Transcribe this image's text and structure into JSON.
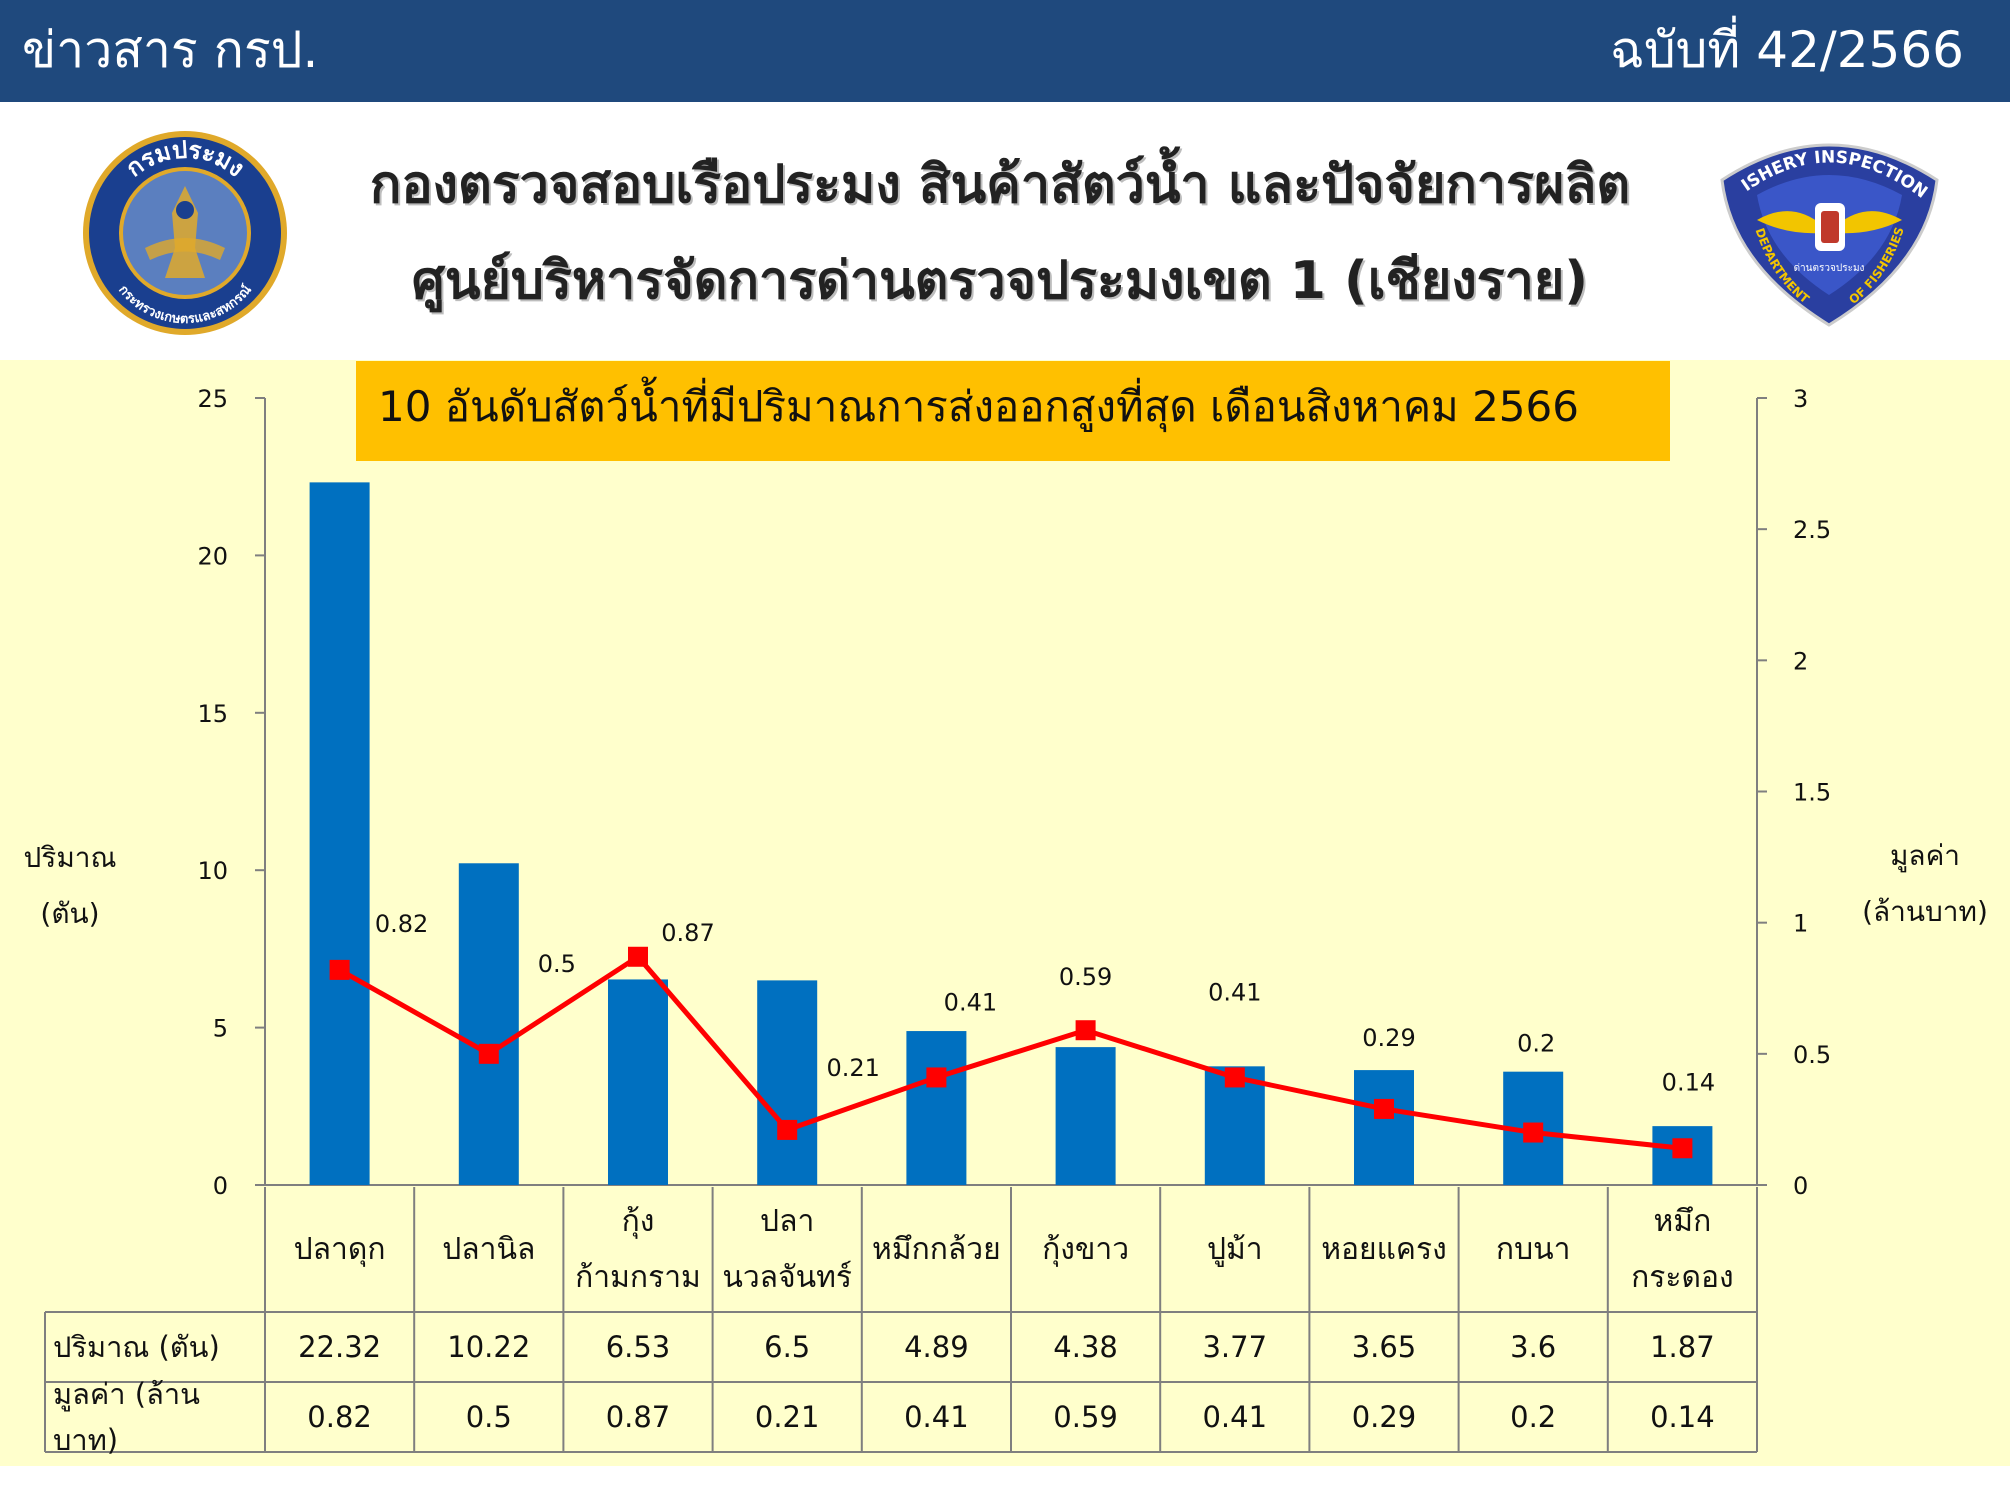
{
  "header": {
    "newsletter_label": "ข่าวสาร กรป.",
    "issue_label": "ฉบับที่ 42/2566",
    "title_line1": "กองตรวจสอบเรือประมง สินค้าสัตว์น้ำ และปัจจัยการผลิต",
    "title_line2": "ศูนย์บริหารจัดการด่านตรวจประมงเขต 1 (เชียงราย)"
  },
  "logos": {
    "left": {
      "top_text": "กรมประมง",
      "bottom_text": "กระทรวงเกษตรและสหกรณ์",
      "colors": [
        "#1a3f8f",
        "#e0a92a"
      ]
    },
    "right": {
      "top_text": "FISHERY INSPECTION",
      "left_text": "DEPARTMENT",
      "right_text": "OF FISHERIES",
      "center_text": "ด่านตรวจประมง",
      "colors": [
        "#2a3fa0",
        "#f2c500"
      ]
    }
  },
  "chart_data": {
    "type": "bar",
    "title": "10 อันดับสัตว์น้ำที่มีปริมาณการส่งออกสูงที่สุด เดือนสิงหาคม 2566",
    "categories": [
      [
        "ปลาดุก"
      ],
      [
        "ปลานิล"
      ],
      [
        "กุ้ง",
        "ก้ามกราม"
      ],
      [
        "ปลา",
        "นวลจันทร์"
      ],
      [
        "หมึกกล้วย"
      ],
      [
        "กุ้งขาว"
      ],
      [
        "ปูม้า"
      ],
      [
        "หอยแครง"
      ],
      [
        "กบนา"
      ],
      [
        "หมึก",
        "กระดอง"
      ]
    ],
    "series": [
      {
        "name": "ปริมาณ (ตัน)",
        "type": "bar",
        "axis": "left",
        "color": "#0070c0",
        "values": [
          22.32,
          10.22,
          6.53,
          6.5,
          4.89,
          4.38,
          3.77,
          3.65,
          3.6,
          1.87
        ]
      },
      {
        "name": "มูลค่า (ล้านบาท)",
        "type": "line",
        "axis": "right",
        "color": "#ff0000",
        "values": [
          0.82,
          0.5,
          0.87,
          0.21,
          0.41,
          0.59,
          0.41,
          0.29,
          0.2,
          0.14
        ]
      }
    ],
    "value_labels": [
      "0.82",
      "0.5",
      "0.87",
      "0.21",
      "0.41",
      "0.59",
      "0.41",
      "0.29",
      "0.2",
      "0.14"
    ],
    "table_values": {
      "quantity": [
        "22.32",
        "10.22",
        "6.53",
        "6.5",
        "4.89",
        "4.38",
        "3.77",
        "3.65",
        "3.6",
        "1.87"
      ],
      "value": [
        "0.82",
        "0.5",
        "0.87",
        "0.21",
        "0.41",
        "0.59",
        "0.41",
        "0.29",
        "0.2",
        "0.14"
      ]
    },
    "left_axis": {
      "label_lines": [
        "ปริมาณ",
        "(ตัน)"
      ],
      "ylim": [
        0,
        25
      ],
      "ticks": [
        "0",
        "5",
        "10",
        "15",
        "20",
        "25"
      ]
    },
    "right_axis": {
      "label_lines": [
        "มูลค่า",
        "(ล้านบาท)"
      ],
      "ylim": [
        0,
        3
      ],
      "ticks": [
        "0",
        "0.5",
        "1",
        "1.5",
        "2",
        "2.5",
        "3"
      ]
    },
    "table_row_headers": [
      "ปริมาณ (ตัน)",
      "มูลค่า (ล้านบาท)"
    ],
    "grid": false,
    "legend": "table"
  }
}
